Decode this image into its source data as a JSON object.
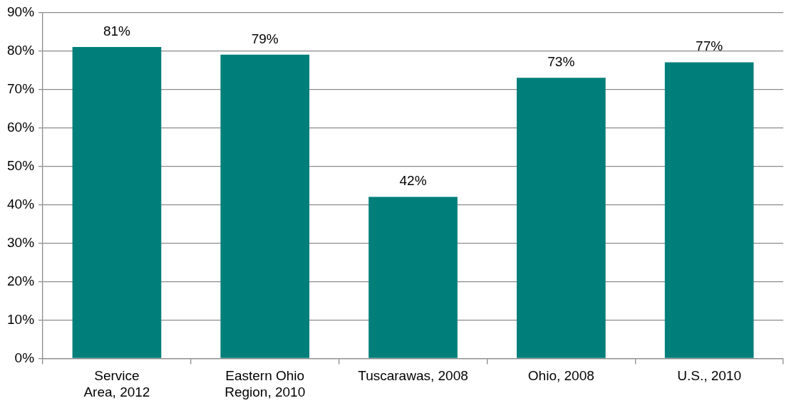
{
  "chart_data": {
    "type": "bar",
    "categories": [
      "Service Area, 2012",
      "Eastern Ohio Region, 2010",
      "Tuscarawas, 2008",
      "Ohio, 2008",
      "U.S., 2010"
    ],
    "values": [
      81,
      79,
      42,
      73,
      77
    ],
    "value_labels": [
      "81%",
      "79%",
      "42%",
      "73%",
      "77%"
    ],
    "color": "#007f7a",
    "ylim": [
      0,
      90
    ],
    "yticks": [
      {
        "value": 0,
        "label": "0%"
      },
      {
        "value": 10,
        "label": "10%"
      },
      {
        "value": 20,
        "label": "20%"
      },
      {
        "value": 30,
        "label": "30%"
      },
      {
        "value": 40,
        "label": "40%"
      },
      {
        "value": 50,
        "label": "50%"
      },
      {
        "value": 60,
        "label": "60%"
      },
      {
        "value": 70,
        "label": "70%"
      },
      {
        "value": 80,
        "label": "80%"
      },
      {
        "value": 90,
        "label": "90%"
      }
    ],
    "grid": "y",
    "legend": false
  }
}
